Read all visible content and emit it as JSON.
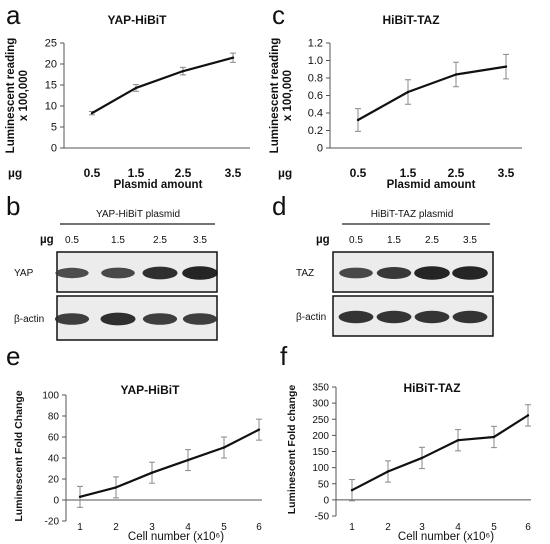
{
  "panels": {
    "a": "a",
    "b": "b",
    "c": "c",
    "d": "d",
    "e": "e",
    "f": "f"
  },
  "chart_data": [
    {
      "id": "a",
      "type": "line",
      "title": "YAP-HiBiT",
      "xlabel": "Plasmid amount",
      "xunit": "µg",
      "ylabel": "Luminescent reading x 100,000",
      "categories": [
        "0.5",
        "1.5",
        "2.5",
        "3.5"
      ],
      "values": [
        8.3,
        14.3,
        18.3,
        21.5
      ],
      "errors": [
        0.4,
        0.8,
        0.9,
        1.1
      ],
      "ylim": [
        0,
        25
      ],
      "yticks": [
        "0",
        "5",
        "10",
        "15",
        "20",
        "25"
      ],
      "grid": false
    },
    {
      "id": "c",
      "type": "line",
      "title": "HiBiT-TAZ",
      "xlabel": "Plasmid amount",
      "xunit": "µg",
      "ylabel": "Luminescent reading x 100,000",
      "categories": [
        "0.5",
        "1.5",
        "2.5",
        "3.5"
      ],
      "values": [
        0.32,
        0.64,
        0.84,
        0.93
      ],
      "errors": [
        0.13,
        0.14,
        0.14,
        0.14
      ],
      "ylim": [
        0,
        1.2
      ],
      "yticks": [
        "0",
        "0.2",
        "0.4",
        "0.6",
        "0.8",
        "1.0",
        "1.2"
      ],
      "grid": false
    },
    {
      "id": "e",
      "type": "line",
      "title": "YAP-HiBiT",
      "xlabel": "Cell number (x10⁶)",
      "ylabel": "Luminescent Fold Change",
      "x": [
        "1",
        "2",
        "3",
        "4",
        "5",
        "6"
      ],
      "values": [
        3,
        12,
        26,
        38,
        50,
        67
      ],
      "errors": [
        10,
        10,
        10,
        10,
        10,
        10
      ],
      "ylim": [
        -20,
        100
      ],
      "yticks": [
        "-20",
        "0",
        "20",
        "40",
        "60",
        "80",
        "100"
      ],
      "grid": false
    },
    {
      "id": "f",
      "type": "line",
      "title": "HiBiT-TAZ",
      "xlabel": "Cell number (x10⁶)",
      "ylabel": "Luminescent Fold change",
      "x": [
        "1",
        "2",
        "3",
        "4",
        "5",
        "6"
      ],
      "values": [
        30,
        88,
        130,
        185,
        195,
        262
      ],
      "errors": [
        33,
        33,
        33,
        33,
        33,
        33
      ],
      "ylim": [
        -50,
        350
      ],
      "yticks": [
        "-50",
        "0",
        "50",
        "100",
        "150",
        "200",
        "250",
        "300",
        "350"
      ],
      "grid": false
    }
  ],
  "blots": [
    {
      "id": "b",
      "header": "YAP-HiBiT plasmid",
      "unit": "µg",
      "lanes": [
        "0.5",
        "1.5",
        "2.5",
        "3.5"
      ],
      "rows": [
        {
          "label": "YAP",
          "intensity": [
            0.55,
            0.6,
            0.85,
            0.95
          ]
        },
        {
          "label": "β-actin",
          "intensity": [
            0.7,
            0.85,
            0.7,
            0.7
          ]
        }
      ]
    },
    {
      "id": "d",
      "header": "HiBiT-TAZ plasmid",
      "unit": "µg",
      "lanes": [
        "0.5",
        "1.5",
        "2.5",
        "3.5"
      ],
      "rows": [
        {
          "label": "TAZ",
          "intensity": [
            0.6,
            0.75,
            0.95,
            0.95
          ]
        },
        {
          "label": "β-actin",
          "intensity": [
            0.8,
            0.8,
            0.8,
            0.8
          ]
        }
      ]
    }
  ]
}
